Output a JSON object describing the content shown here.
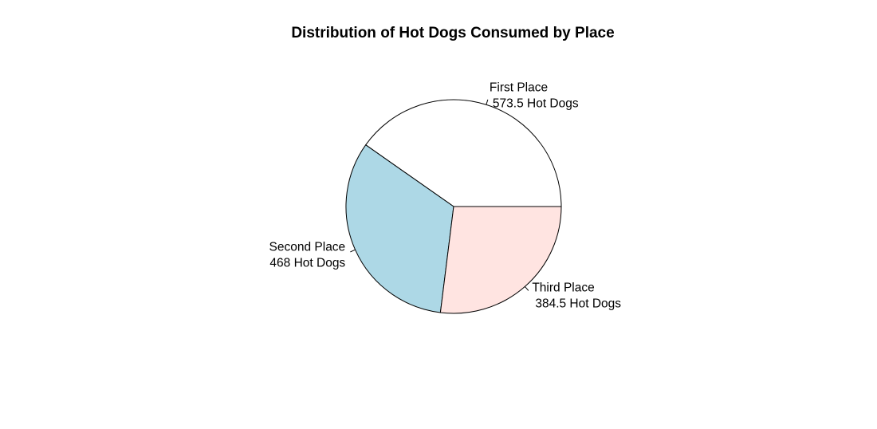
{
  "chart_data": {
    "type": "pie",
    "title": "Distribution of Hot Dogs Consumed by Place",
    "slices": [
      {
        "label": "First Place",
        "value": 573.5,
        "value_text": "573.5 Hot Dogs",
        "color": "#ffffff"
      },
      {
        "label": "Second Place",
        "value": 468,
        "value_text": "468 Hot Dogs",
        "color": "#add8e6"
      },
      {
        "label": "Third Place",
        "value": 384.5,
        "value_text": "384.5 Hot Dogs",
        "color": "#ffe4e1"
      }
    ],
    "direction": "counterclockwise",
    "start": "3 o'clock"
  }
}
